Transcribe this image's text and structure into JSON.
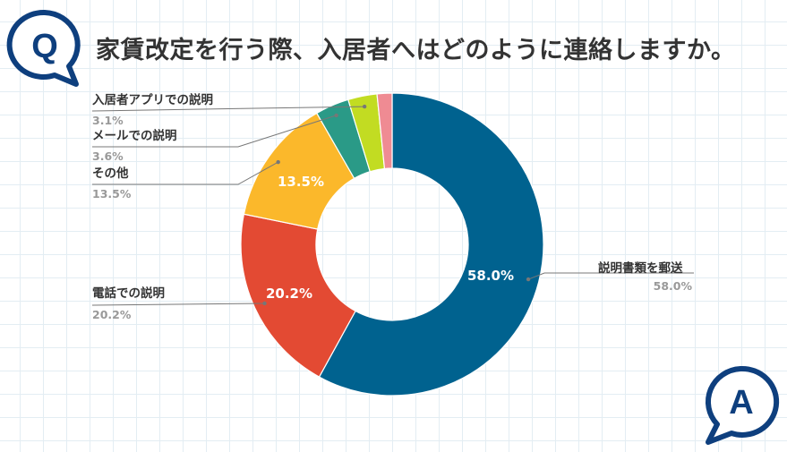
{
  "header": {
    "question": "家賃改定を行う際、入居者へはどのように連絡しますか。",
    "q_letter": "Q",
    "a_letter": "A"
  },
  "colors": {
    "brand": "#0e3f7e",
    "text": "#333333",
    "muted": "#999999"
  },
  "chart_data": {
    "type": "pie",
    "variant": "donut",
    "title": "家賃改定を行う際、入居者へはどのように連絡しますか。",
    "legend": "outside-labels",
    "slices": [
      {
        "label": "説明書類を郵送",
        "value": 58.0,
        "display": "58.0%",
        "color": "#00628f",
        "inner_label": "58.0%"
      },
      {
        "label": "電話での説明",
        "value": 20.2,
        "display": "20.2%",
        "color": "#e34a33",
        "inner_label": "20.2%"
      },
      {
        "label": "その他",
        "value": 13.5,
        "display": "13.5%",
        "color": "#fbb82b",
        "inner_label": "13.5%"
      },
      {
        "label": "メールでの説明",
        "value": 3.6,
        "display": "3.6%",
        "color": "#2a9a87",
        "inner_label": ""
      },
      {
        "label": "入居者アプリでの説明",
        "value": 3.1,
        "display": "3.1%",
        "color": "#c2dc22",
        "inner_label": ""
      },
      {
        "label": "",
        "value": 1.6,
        "display": "",
        "color": "#ef8b93",
        "inner_label": ""
      }
    ]
  }
}
